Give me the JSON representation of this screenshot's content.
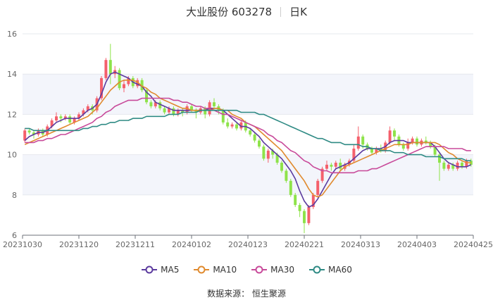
{
  "header": {
    "stock_name": "大业股份 603278",
    "period": "日K"
  },
  "source_text": "数据来源：  恒生聚源",
  "chart_data": {
    "type": "candlestick",
    "x_tick_labels": [
      "20231030",
      "20231120",
      "20231211",
      "20240102",
      "20240123",
      "20240221",
      "20240313",
      "20240403",
      "20240425"
    ],
    "y_ticks": [
      6,
      8,
      10,
      12,
      14,
      16
    ],
    "ylim": [
      6,
      16
    ],
    "grid": true,
    "legend_position": "bottom",
    "colors": {
      "up": "#f4606c",
      "down": "#8ee34a"
    },
    "candles": [
      [
        10.7,
        11.2,
        10.6,
        11.3
      ],
      [
        11.2,
        11.1,
        11.0,
        11.3
      ],
      [
        11.1,
        11.0,
        10.8,
        11.2
      ],
      [
        11.0,
        11.2,
        10.9,
        11.3
      ],
      [
        11.2,
        11.0,
        10.9,
        11.3
      ],
      [
        11.0,
        11.4,
        10.9,
        11.5
      ],
      [
        11.4,
        11.7,
        11.3,
        11.8
      ],
      [
        11.7,
        11.9,
        11.6,
        12.1
      ],
      [
        11.9,
        11.8,
        11.6,
        12.0
      ],
      [
        11.8,
        11.9,
        11.7,
        12.0
      ],
      [
        11.9,
        11.6,
        11.5,
        12.0
      ],
      [
        11.6,
        11.8,
        11.5,
        11.9
      ],
      [
        11.8,
        12.0,
        11.7,
        12.1
      ],
      [
        12.0,
        12.2,
        11.9,
        12.3
      ],
      [
        12.2,
        12.4,
        12.1,
        12.5
      ],
      [
        12.4,
        12.2,
        12.0,
        12.5
      ],
      [
        12.2,
        12.8,
        12.1,
        12.9
      ],
      [
        12.8,
        13.8,
        12.7,
        13.9
      ],
      [
        13.8,
        14.7,
        13.7,
        14.8
      ],
      [
        14.7,
        14.0,
        13.5,
        15.5
      ],
      [
        14.0,
        14.2,
        13.8,
        14.4
      ],
      [
        14.2,
        13.3,
        13.2,
        14.3
      ],
      [
        13.3,
        13.5,
        13.1,
        13.7
      ],
      [
        13.5,
        13.8,
        13.4,
        13.9
      ],
      [
        13.8,
        13.4,
        13.3,
        13.9
      ],
      [
        13.4,
        13.7,
        13.3,
        13.8
      ],
      [
        13.7,
        13.2,
        13.1,
        13.8
      ],
      [
        13.2,
        12.6,
        12.5,
        13.3
      ],
      [
        12.6,
        12.4,
        12.3,
        12.7
      ],
      [
        12.4,
        12.6,
        12.3,
        12.7
      ],
      [
        12.6,
        12.3,
        12.2,
        12.7
      ],
      [
        12.3,
        12.1,
        12.0,
        12.4
      ],
      [
        12.1,
        12.3,
        12.0,
        12.4
      ],
      [
        12.3,
        12.0,
        11.9,
        12.4
      ],
      [
        12.0,
        12.2,
        11.9,
        12.3
      ],
      [
        12.2,
        12.1,
        11.9,
        12.3
      ],
      [
        12.1,
        12.4,
        12.0,
        12.5
      ],
      [
        12.4,
        12.2,
        12.1,
        12.5
      ],
      [
        12.2,
        12.1,
        11.8,
        12.3
      ],
      [
        12.1,
        12.3,
        12.0,
        12.4
      ],
      [
        12.3,
        12.0,
        11.8,
        12.4
      ],
      [
        12.0,
        12.6,
        11.9,
        12.7
      ],
      [
        12.6,
        12.4,
        12.2,
        12.8
      ],
      [
        12.4,
        12.2,
        12.0,
        12.5
      ],
      [
        12.2,
        11.6,
        11.5,
        12.3
      ],
      [
        11.6,
        11.4,
        11.3,
        11.8
      ],
      [
        11.4,
        11.5,
        11.3,
        11.6
      ],
      [
        11.5,
        11.3,
        11.2,
        11.6
      ],
      [
        11.3,
        11.6,
        11.2,
        11.7
      ],
      [
        11.6,
        11.2,
        11.1,
        11.7
      ],
      [
        11.2,
        11.0,
        10.9,
        11.3
      ],
      [
        11.0,
        10.7,
        10.6,
        11.1
      ],
      [
        10.7,
        10.4,
        10.3,
        10.8
      ],
      [
        10.4,
        9.8,
        9.7,
        10.5
      ],
      [
        9.8,
        10.2,
        9.6,
        10.3
      ],
      [
        10.2,
        10.0,
        9.8,
        10.3
      ],
      [
        10.0,
        9.6,
        9.5,
        10.1
      ],
      [
        9.6,
        9.2,
        9.1,
        9.7
      ],
      [
        9.2,
        8.7,
        8.6,
        9.3
      ],
      [
        8.7,
        8.0,
        7.9,
        8.8
      ],
      [
        8.0,
        7.5,
        7.4,
        8.1
      ],
      [
        7.5,
        7.2,
        6.9,
        7.6
      ],
      [
        7.2,
        6.6,
        6.1,
        7.3
      ],
      [
        6.6,
        7.4,
        6.5,
        7.5
      ],
      [
        7.4,
        8.0,
        7.3,
        8.1
      ],
      [
        8.0,
        8.7,
        7.9,
        8.8
      ],
      [
        8.7,
        9.3,
        8.6,
        9.4
      ],
      [
        9.3,
        9.5,
        9.2,
        9.7
      ],
      [
        9.5,
        9.4,
        9.2,
        9.6
      ],
      [
        9.4,
        9.6,
        9.3,
        9.7
      ],
      [
        9.6,
        9.3,
        9.2,
        9.8
      ],
      [
        9.3,
        9.5,
        9.2,
        9.6
      ],
      [
        9.5,
        9.7,
        9.4,
        9.8
      ],
      [
        9.7,
        10.3,
        9.6,
        10.5
      ],
      [
        10.3,
        10.9,
        10.2,
        11.4
      ],
      [
        10.9,
        10.5,
        10.3,
        11.0
      ],
      [
        10.5,
        10.3,
        10.2,
        10.6
      ],
      [
        10.3,
        10.1,
        10.0,
        10.4
      ],
      [
        10.1,
        10.3,
        10.0,
        10.4
      ],
      [
        10.3,
        10.2,
        10.1,
        10.5
      ],
      [
        10.2,
        10.6,
        10.1,
        10.7
      ],
      [
        10.6,
        11.2,
        10.5,
        11.4
      ],
      [
        11.2,
        10.9,
        10.7,
        11.3
      ],
      [
        10.9,
        10.5,
        10.4,
        11.0
      ],
      [
        10.5,
        10.3,
        10.2,
        10.6
      ],
      [
        10.3,
        10.6,
        10.2,
        10.8
      ],
      [
        10.6,
        10.8,
        10.5,
        10.9
      ],
      [
        10.8,
        10.5,
        10.4,
        10.9
      ],
      [
        10.5,
        10.7,
        10.4,
        10.8
      ],
      [
        10.7,
        10.6,
        10.5,
        10.9
      ],
      [
        10.6,
        10.4,
        10.3,
        10.7
      ],
      [
        10.4,
        10.0,
        9.9,
        10.5
      ],
      [
        10.0,
        9.6,
        8.7,
        10.1
      ],
      [
        9.6,
        9.3,
        9.2,
        9.7
      ],
      [
        9.3,
        9.5,
        9.2,
        9.6
      ],
      [
        9.5,
        9.3,
        9.2,
        9.6
      ],
      [
        9.3,
        9.6,
        9.2,
        9.7
      ],
      [
        9.6,
        9.4,
        9.3,
        9.7
      ],
      [
        9.4,
        9.7,
        9.3,
        9.8
      ],
      [
        9.7,
        9.5,
        9.4,
        9.8
      ]
    ],
    "series": [
      {
        "name": "MA5",
        "color": "#5b3a9e",
        "values": [
          10.7,
          10.9,
          11.0,
          11.1,
          11.1,
          11.2,
          11.4,
          11.6,
          11.7,
          11.8,
          11.8,
          11.8,
          11.8,
          12.0,
          12.2,
          12.3,
          12.5,
          13.0,
          13.6,
          14.0,
          14.1,
          14.0,
          13.9,
          13.8,
          13.6,
          13.5,
          13.4,
          13.1,
          12.9,
          12.6,
          12.5,
          12.4,
          12.3,
          12.2,
          12.2,
          12.2,
          12.2,
          12.2,
          12.2,
          12.2,
          12.2,
          12.3,
          12.3,
          12.3,
          12.2,
          12.0,
          11.8,
          11.6,
          11.4,
          11.4,
          11.3,
          11.1,
          10.9,
          10.6,
          10.4,
          10.2,
          10.0,
          9.8,
          9.5,
          9.2,
          8.8,
          8.2,
          7.7,
          7.4,
          7.5,
          7.8,
          8.2,
          8.6,
          9.0,
          9.3,
          9.4,
          9.5,
          9.6,
          9.8,
          10.0,
          10.2,
          10.3,
          10.3,
          10.3,
          10.3,
          10.4,
          10.6,
          10.7,
          10.7,
          10.7,
          10.6,
          10.6,
          10.6,
          10.6,
          10.6,
          10.6,
          10.4,
          10.1,
          9.8,
          9.6,
          9.5,
          9.4,
          9.4,
          9.4,
          9.5
        ]
      },
      {
        "name": "MA10",
        "color": "#e08a2e",
        "values": [
          10.5,
          10.6,
          10.7,
          10.8,
          10.9,
          11.0,
          11.1,
          11.2,
          11.3,
          11.4,
          11.5,
          11.6,
          11.7,
          11.8,
          11.9,
          12.1,
          12.3,
          12.6,
          12.9,
          13.2,
          13.4,
          13.6,
          13.7,
          13.7,
          13.7,
          13.6,
          13.4,
          13.3,
          13.1,
          13.0,
          12.8,
          12.7,
          12.6,
          12.5,
          12.4,
          12.3,
          12.3,
          12.2,
          12.2,
          12.2,
          12.2,
          12.2,
          12.3,
          12.3,
          12.2,
          12.2,
          12.0,
          11.9,
          11.8,
          11.6,
          11.5,
          11.4,
          11.2,
          11.0,
          10.8,
          10.6,
          10.4,
          10.2,
          9.9,
          9.6,
          9.3,
          9.0,
          8.7,
          8.3,
          8.0,
          7.9,
          8.0,
          8.3,
          8.6,
          8.9,
          9.2,
          9.4,
          9.5,
          9.6,
          9.7,
          9.8,
          9.9,
          10.0,
          10.1,
          10.2,
          10.3,
          10.4,
          10.5,
          10.5,
          10.5,
          10.5,
          10.6,
          10.6,
          10.6,
          10.6,
          10.6,
          10.6,
          10.5,
          10.3,
          10.1,
          10.0,
          9.8,
          9.7,
          9.6,
          9.6
        ]
      },
      {
        "name": "MA30",
        "color": "#c84a9a",
        "values": [
          10.6,
          10.6,
          10.6,
          10.7,
          10.7,
          10.8,
          10.8,
          10.9,
          11.0,
          11.0,
          11.1,
          11.2,
          11.3,
          11.4,
          11.5,
          11.6,
          11.8,
          11.9,
          12.1,
          12.2,
          12.4,
          12.5,
          12.6,
          12.7,
          12.7,
          12.7,
          12.8,
          12.8,
          12.8,
          12.8,
          12.8,
          12.8,
          12.8,
          12.7,
          12.7,
          12.6,
          12.6,
          12.5,
          12.4,
          12.4,
          12.3,
          12.3,
          12.2,
          12.1,
          12.0,
          12.0,
          11.9,
          11.8,
          11.7,
          11.6,
          11.5,
          11.4,
          11.3,
          11.2,
          11.0,
          10.9,
          10.7,
          10.6,
          10.4,
          10.2,
          10.1,
          9.9,
          9.7,
          9.6,
          9.4,
          9.3,
          9.2,
          9.2,
          9.1,
          9.1,
          9.1,
          9.1,
          9.1,
          9.1,
          9.2,
          9.2,
          9.2,
          9.3,
          9.3,
          9.4,
          9.5,
          9.6,
          9.7,
          9.8,
          9.9,
          10.0,
          10.1,
          10.2,
          10.3,
          10.4,
          10.4,
          10.4,
          10.4,
          10.4,
          10.3,
          10.3,
          10.3,
          10.3,
          10.2,
          10.2
        ]
      },
      {
        "name": "MA60",
        "color": "#2e8a84",
        "values": [
          11.3,
          11.3,
          11.2,
          11.2,
          11.2,
          11.2,
          11.2,
          11.2,
          11.2,
          11.2,
          11.2,
          11.2,
          11.2,
          11.3,
          11.3,
          11.4,
          11.4,
          11.5,
          11.5,
          11.6,
          11.6,
          11.7,
          11.7,
          11.7,
          11.8,
          11.8,
          11.8,
          11.9,
          11.9,
          11.9,
          11.9,
          11.9,
          12.0,
          12.0,
          12.0,
          12.1,
          12.1,
          12.1,
          12.1,
          12.2,
          12.2,
          12.2,
          12.2,
          12.2,
          12.2,
          12.2,
          12.2,
          12.2,
          12.1,
          12.1,
          12.1,
          12.1,
          12.0,
          12.0,
          11.9,
          11.8,
          11.7,
          11.6,
          11.5,
          11.4,
          11.3,
          11.2,
          11.1,
          11.0,
          10.9,
          10.8,
          10.8,
          10.7,
          10.6,
          10.6,
          10.6,
          10.5,
          10.5,
          10.5,
          10.5,
          10.4,
          10.4,
          10.3,
          10.3,
          10.2,
          10.2,
          10.2,
          10.1,
          10.1,
          10.1,
          10.0,
          10.0,
          10.0,
          10.0,
          9.9,
          9.9,
          9.9,
          9.9,
          9.8,
          9.8,
          9.8,
          9.8,
          9.8,
          9.7,
          9.7
        ]
      }
    ]
  }
}
